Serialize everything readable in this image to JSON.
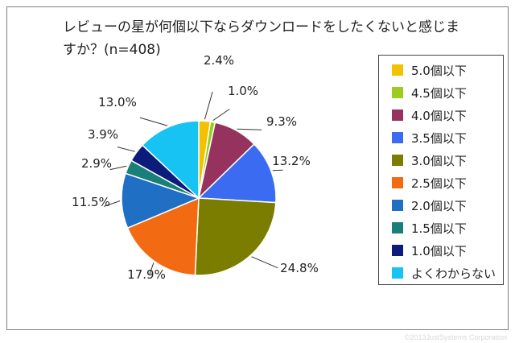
{
  "chart_data": {
    "type": "pie",
    "title": "レビューの星が何個以下ならダウンロードをしたくないと感じますか？(n=408)",
    "start": "12 o'clock",
    "direction": "clockwise",
    "labels": [
      "5.0個以下",
      "4.5個以下",
      "4.0個以下",
      "3.5個以下",
      "3.0個以下",
      "2.5個以下",
      "2.0個以下",
      "1.5個以下",
      "1.0個以下",
      "よくわからない"
    ],
    "values": [
      2.4,
      1.0,
      9.3,
      13.2,
      24.8,
      17.9,
      11.5,
      2.9,
      3.9,
      13.0
    ],
    "value_labels": [
      "2.4%",
      "1.0%",
      "9.3%",
      "13.2%",
      "24.8%",
      "17.9%",
      "11.5%",
      "2.9%",
      "3.9%",
      "13.0%"
    ],
    "colors": [
      "#f2c100",
      "#9acd1e",
      "#96325e",
      "#3a6bf0",
      "#7b7d00",
      "#f26b13",
      "#1f6fc4",
      "#1a7f78",
      "#0b1c7a",
      "#17c3f2"
    ],
    "legend_position": "right"
  },
  "copyright": "©2013JustSystems Corporation"
}
